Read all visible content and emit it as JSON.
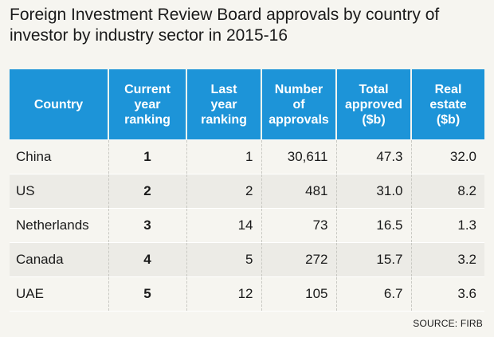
{
  "title": "Foreign Investment Review Board approvals by country of investor by industry sector in 2015-16",
  "headers": {
    "country": [
      "Country"
    ],
    "current_rank": [
      "Current",
      "year",
      "ranking"
    ],
    "last_rank": [
      "Last",
      "year",
      "ranking"
    ],
    "approvals": [
      "Number",
      "of",
      "approvals"
    ],
    "total": [
      "Total",
      "approved",
      "($b)"
    ],
    "real_estate": [
      "Real",
      "estate",
      "($b)"
    ]
  },
  "rows": [
    {
      "country": "China",
      "current_rank": "1",
      "last_rank": "1",
      "approvals": "30,611",
      "total": "47.3",
      "real_estate": "32.0"
    },
    {
      "country": "US",
      "current_rank": "2",
      "last_rank": "2",
      "approvals": "481",
      "total": "31.0",
      "real_estate": "8.2"
    },
    {
      "country": "Netherlands",
      "current_rank": "3",
      "last_rank": "14",
      "approvals": "73",
      "total": "16.5",
      "real_estate": "1.3"
    },
    {
      "country": "Canada",
      "current_rank": "4",
      "last_rank": "5",
      "approvals": "272",
      "total": "15.7",
      "real_estate": "3.2"
    },
    {
      "country": "UAE",
      "current_rank": "5",
      "last_rank": "12",
      "approvals": "105",
      "total": "6.7",
      "real_estate": "3.6"
    }
  ],
  "source": "SOURCE: FIRB",
  "colors": {
    "header_bg": "#1d94d8",
    "page_bg": "#f6f5f0",
    "stripe_bg": "#ecebe6"
  }
}
